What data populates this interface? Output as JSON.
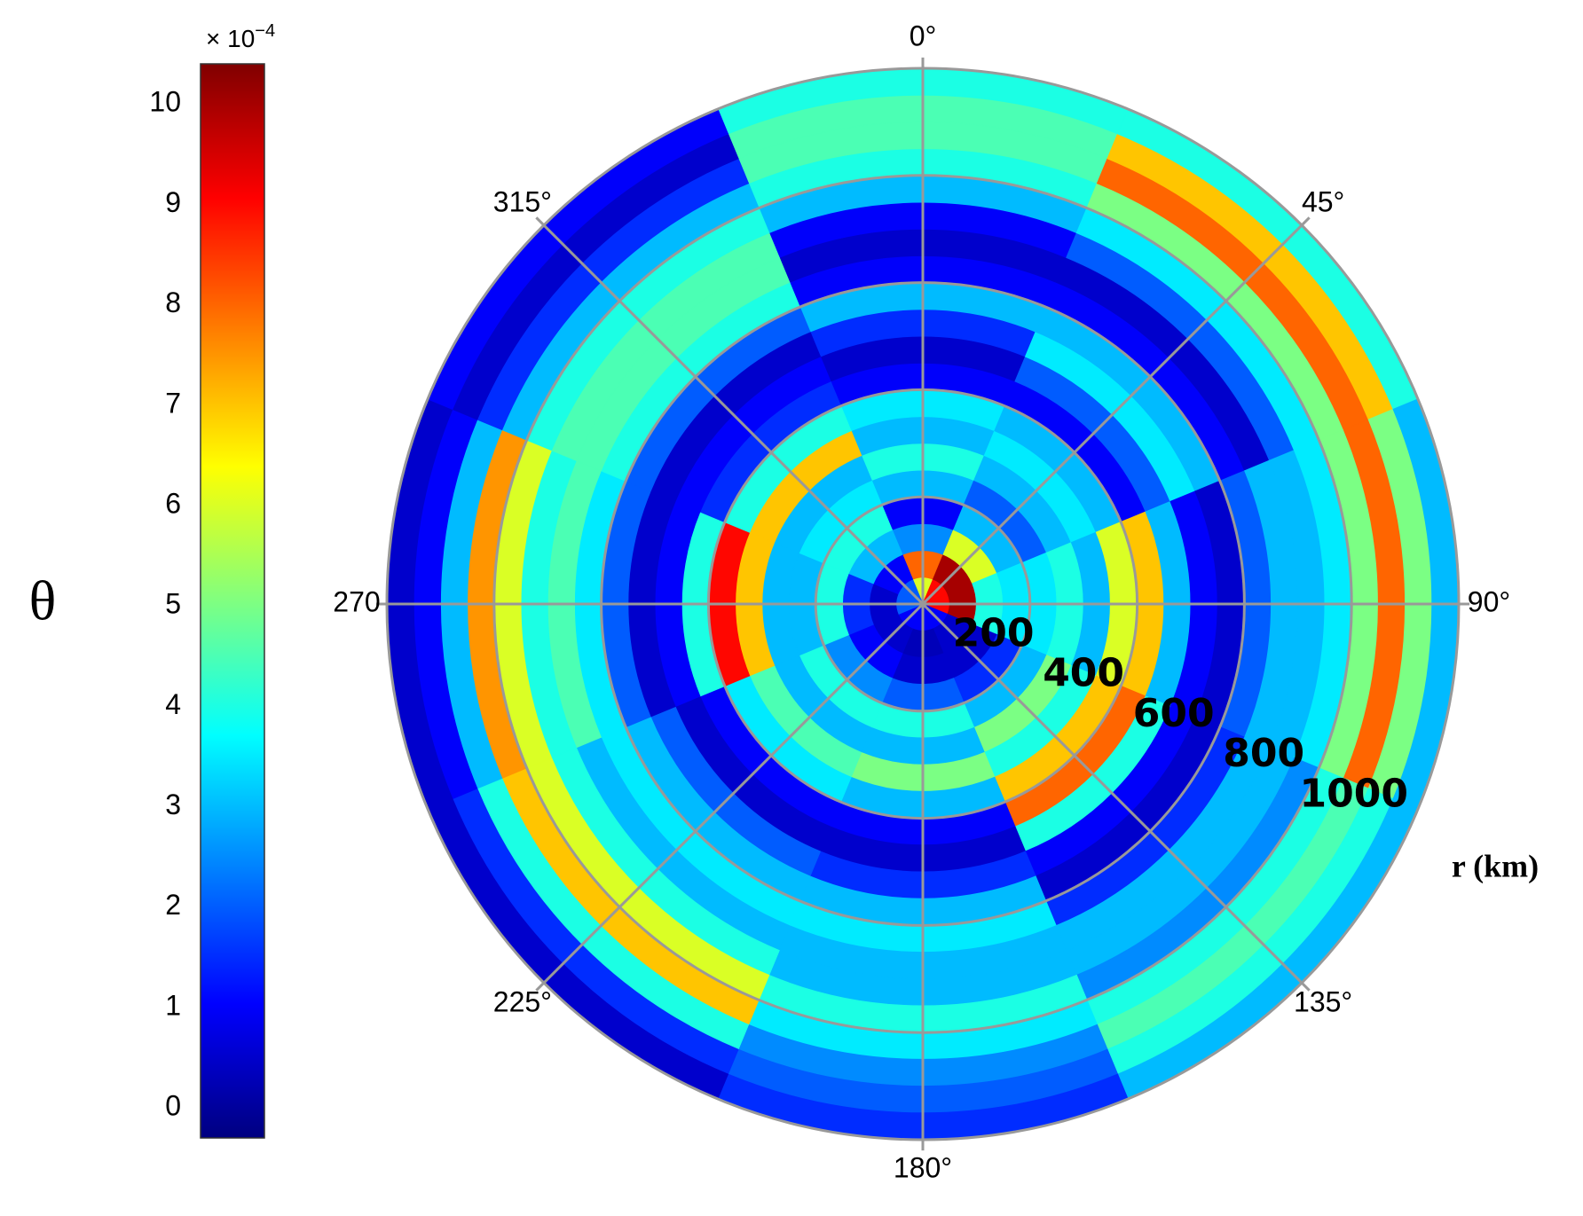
{
  "chart_data": {
    "type": "polar-heatmap",
    "theta": [
      0,
      45,
      90,
      135,
      180,
      225,
      270,
      315
    ],
    "r_edges": [
      0,
      50,
      100,
      150,
      200,
      250,
      300,
      350,
      400,
      450,
      500,
      550,
      600,
      650,
      700,
      750,
      800,
      850,
      900,
      950,
      1000
    ],
    "values": [
      [
        6,
        8,
        2.5,
        1,
        3,
        4,
        3,
        3.5,
        1,
        0.5,
        1.5,
        3,
        1,
        0.5,
        1,
        3,
        4,
        4.5,
        4.5,
        4
      ],
      [
        9,
        10,
        6,
        3,
        2,
        3,
        3.5,
        3,
        1,
        2,
        3.5,
        3,
        1,
        0.5,
        2,
        3.5,
        5,
        8,
        7,
        4
      ],
      [
        9,
        10,
        4,
        3.5,
        3.5,
        4,
        3,
        6,
        7,
        3,
        1,
        0.5,
        2,
        3,
        3,
        3.5,
        5,
        8,
        5,
        3
      ],
      [
        1,
        0.5,
        0.5,
        1.5,
        3,
        5,
        4,
        7,
        8,
        4,
        1,
        0.5,
        1.5,
        3,
        3,
        2.5,
        4,
        4.5,
        4,
        3
      ],
      [
        1,
        0.3,
        0.5,
        2,
        4,
        3,
        5,
        3,
        1,
        0.5,
        1.5,
        3,
        3.5,
        3,
        3,
        4,
        3.5,
        2.5,
        2,
        1.5
      ],
      [
        1,
        0.5,
        1,
        2.5,
        4,
        3,
        4.5,
        3.5,
        1,
        0.5,
        2,
        3,
        3.5,
        3,
        4,
        6,
        7,
        4,
        1.5,
        0.5
      ],
      [
        2,
        0.5,
        1.5,
        4,
        3,
        3,
        7,
        9,
        4,
        1,
        0.5,
        2,
        3.5,
        4.5,
        4,
        6,
        7.5,
        3,
        1,
        0.5
      ],
      [
        2,
        1,
        3,
        4,
        3.5,
        3,
        7,
        4,
        1.5,
        1,
        0.5,
        2,
        4,
        4.5,
        4.5,
        4,
        3,
        1.5,
        0.5,
        1
      ]
    ],
    "rlim": [
      0,
      1000
    ],
    "rticks": [
      200,
      400,
      600,
      800,
      1000
    ],
    "r_label": "r (km)",
    "thetaticks": [
      {
        "value": 0,
        "label": "0°"
      },
      {
        "value": 45,
        "label": "45°"
      },
      {
        "value": 90,
        "label": "90°"
      },
      {
        "value": 135,
        "label": "135°"
      },
      {
        "value": 180,
        "label": "180°"
      },
      {
        "value": 225,
        "label": "225°"
      },
      {
        "value": 270,
        "label": "270"
      },
      {
        "value": 315,
        "label": "315°"
      }
    ],
    "grid": true,
    "colormap": "jet",
    "colorbar_label": "θ",
    "colorbar_multiplier": "× 10",
    "colorbar_exponent": "−4",
    "clim": [
      -0.3,
      10.4
    ],
    "cticks": [
      0,
      1,
      2,
      3,
      4,
      5,
      6,
      7,
      8,
      9,
      10
    ]
  }
}
